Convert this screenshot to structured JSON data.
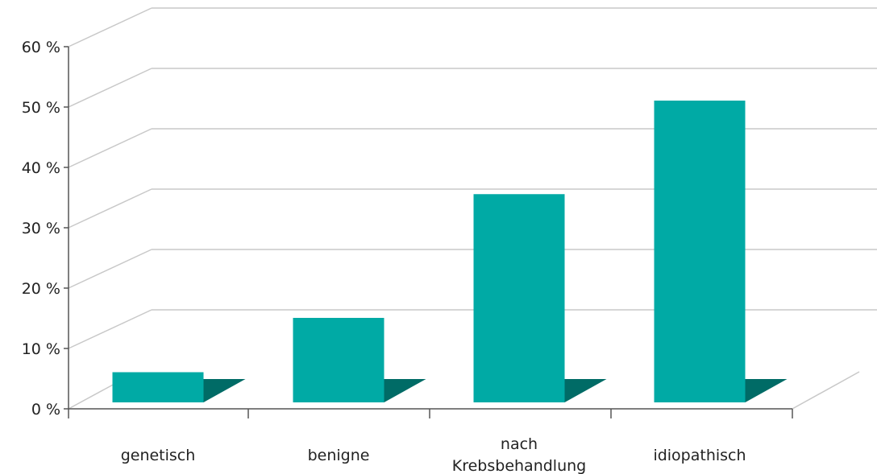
{
  "chart_data": {
    "type": "bar",
    "categories": [
      "genetisch",
      "benigne",
      "nach Krebsbehandlung",
      "idiopathisch"
    ],
    "category_lines": [
      [
        "genetisch"
      ],
      [
        "benigne"
      ],
      [
        "nach",
        "Krebsbehandlung"
      ],
      [
        "idiopathisch"
      ]
    ],
    "values": [
      5,
      14,
      34.5,
      50
    ],
    "ylim": [
      0,
      60
    ],
    "yticks": [
      0,
      10,
      20,
      30,
      40,
      50,
      60
    ],
    "ytick_labels": [
      "0 %",
      "10 %",
      "20 %",
      "30 %",
      "40 %",
      "50 %",
      "60 %"
    ],
    "grid": true,
    "three_d": true,
    "title": "",
    "xlabel": "",
    "ylabel": ""
  },
  "colors": {
    "bar_front": "#00aaa5",
    "bar_shadow": "#006b66",
    "grid": "#c8c8c8",
    "axis": "#555555",
    "text": "#222222"
  }
}
